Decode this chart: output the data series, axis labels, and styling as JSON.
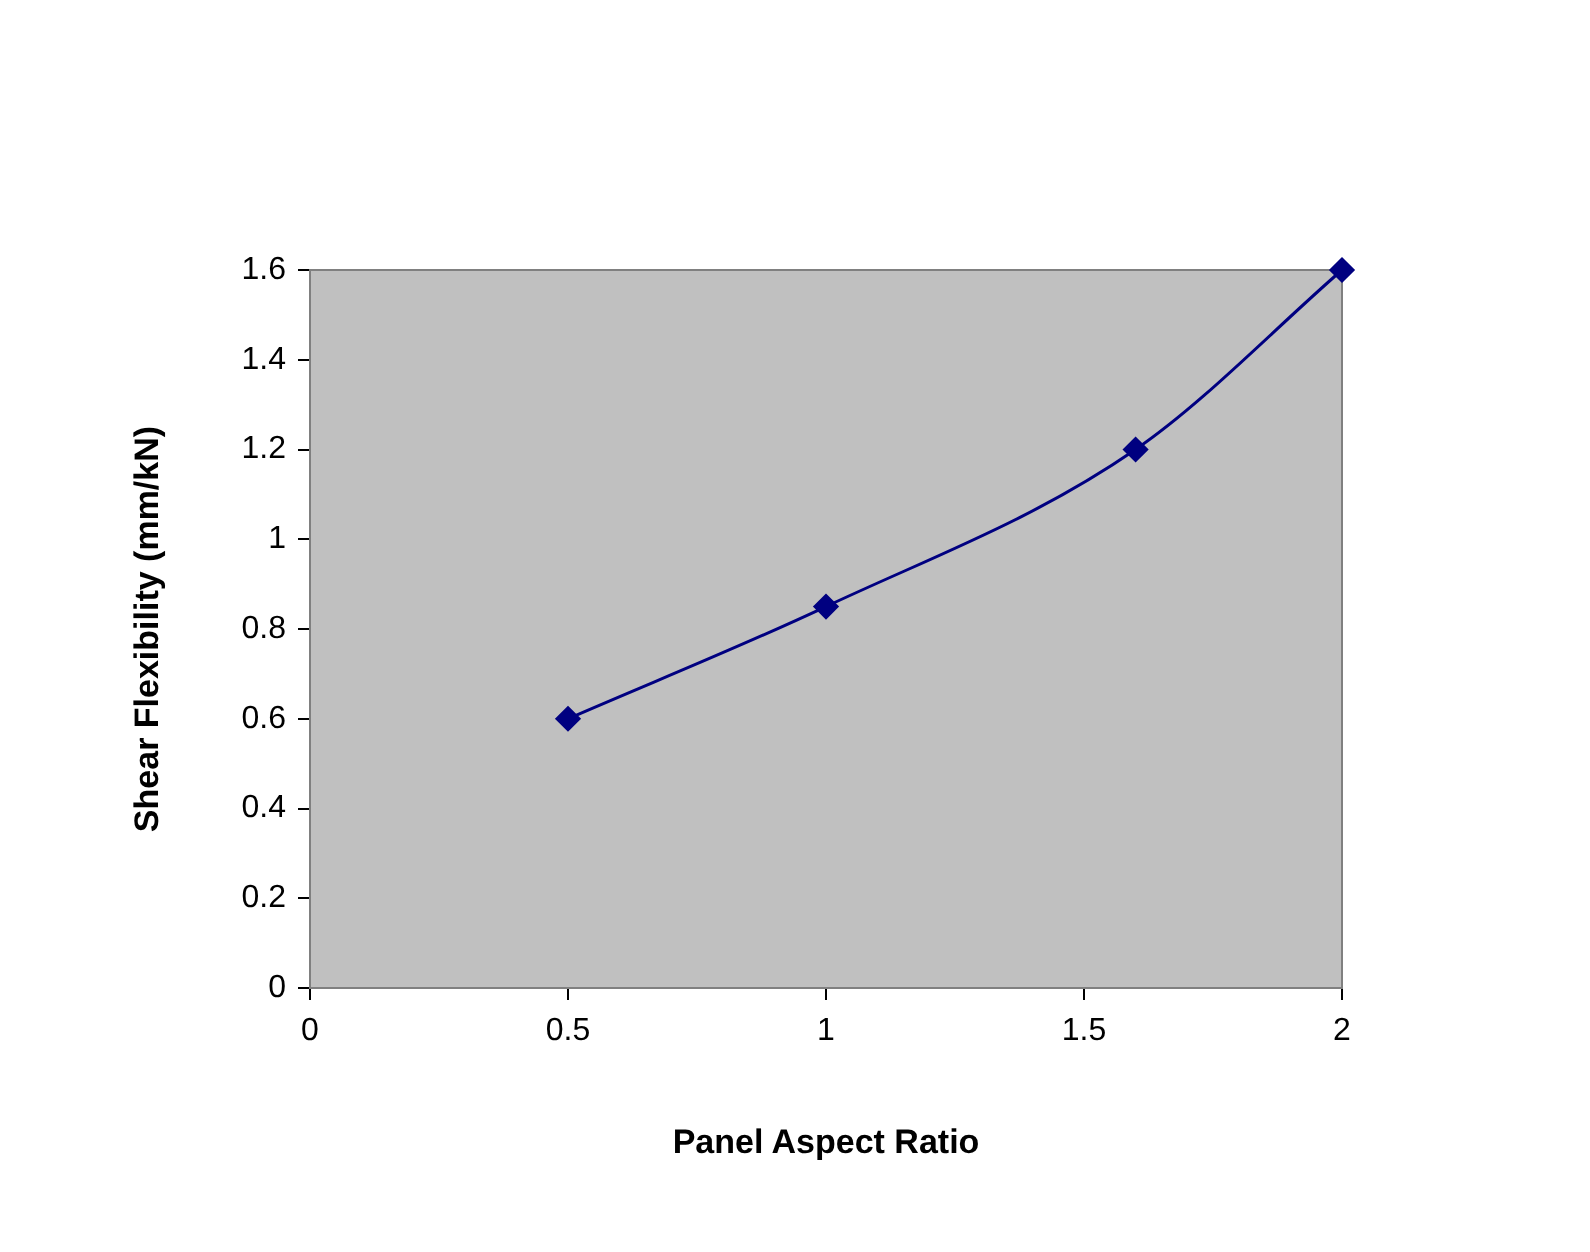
{
  "chart_data": {
    "type": "line",
    "xlabel": "Panel Aspect Ratio",
    "ylabel": "Shear Flexibility (mm/kN)",
    "x": [
      0.5,
      1,
      1.6,
      2
    ],
    "values": [
      0.6,
      0.85,
      1.2,
      1.6
    ],
    "color": "#000080",
    "xlim": [
      0,
      2
    ],
    "xticks": [
      0,
      0.5,
      1,
      1.5,
      2
    ],
    "ylim": [
      0,
      1.6
    ],
    "yticks": [
      0,
      0.2,
      0.4,
      0.6,
      0.8,
      1,
      1.2,
      1.4,
      1.6
    ],
    "legend": false,
    "marker": "diamond",
    "line_style": "solid"
  }
}
